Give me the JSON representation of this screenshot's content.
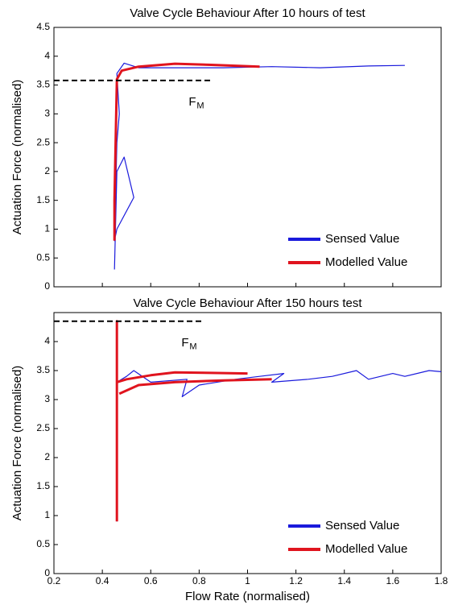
{
  "chart_data": [
    {
      "type": "line",
      "title": "Valve Cycle Behaviour After 10 hours of test",
      "ylabel": "Actuation Force (normalised)",
      "xlim": [
        0.2,
        1.8
      ],
      "xticks": [
        0.2,
        0.4,
        0.6,
        0.8,
        1,
        1.2,
        1.4,
        1.6,
        1.8
      ],
      "show_xtick_labels": false,
      "ylim": [
        0,
        4.5
      ],
      "yticks": [
        0,
        0.5,
        1,
        1.5,
        2,
        2.5,
        3,
        3.5,
        4,
        4.5
      ],
      "legend": "lower right",
      "reference_line": {
        "y": 3.58,
        "x": [
          0.2,
          0.85
        ],
        "color": "#000000",
        "style": "dashed"
      },
      "annotation": {
        "text": "F",
        "subscript": "M"
      },
      "series": [
        {
          "name": "Sensed Value",
          "color": "#1a1adc",
          "x": [
            0.45,
            0.46,
            0.49,
            0.53,
            0.46,
            0.45,
            0.46,
            0.47,
            0.46,
            0.49,
            0.55,
            0.7,
            0.9,
            1.1,
            1.3,
            1.5,
            1.65
          ],
          "values": [
            0.3,
            2.0,
            2.25,
            1.55,
            1.0,
            0.8,
            2.5,
            3.0,
            3.7,
            3.88,
            3.8,
            3.8,
            3.8,
            3.82,
            3.8,
            3.83,
            3.84
          ]
        },
        {
          "name": "Modelled Value",
          "color": "#e0141e",
          "x": [
            0.45,
            0.45,
            0.46,
            0.48,
            0.55,
            0.7,
            0.85,
            1.05
          ],
          "values": [
            0.8,
            1.5,
            3.6,
            3.75,
            3.82,
            3.87,
            3.85,
            3.82
          ]
        }
      ]
    },
    {
      "type": "line",
      "title": "Valve Cycle Behaviour After 150 hours test",
      "xlabel": "Flow Rate (normalised)",
      "ylabel": "Actuation Force (normalised)",
      "xlim": [
        0.2,
        1.8
      ],
      "xticks": [
        0.2,
        0.4,
        0.6,
        0.8,
        1,
        1.2,
        1.4,
        1.6,
        1.8
      ],
      "show_xtick_labels": true,
      "ylim": [
        0,
        4.5
      ],
      "yticks": [
        0,
        0.5,
        1,
        1.5,
        2,
        2.5,
        3,
        3.5,
        4
      ],
      "legend": "lower right",
      "reference_line": {
        "y": 4.35,
        "x": [
          0.2,
          0.82
        ],
        "color": "#000000",
        "style": "dashed"
      },
      "annotation": {
        "text": "F",
        "subscript": "M"
      },
      "series": [
        {
          "name": "Sensed Value",
          "color": "#1a1adc",
          "x": [
            0.46,
            0.46,
            0.5,
            0.53,
            0.6,
            0.75,
            0.73,
            0.8,
            0.95,
            1.05,
            1.15,
            1.1,
            1.25,
            1.35,
            1.45,
            1.5,
            1.6,
            1.65,
            1.75,
            1.8
          ],
          "values": [
            0.9,
            3.3,
            3.4,
            3.5,
            3.3,
            3.35,
            3.05,
            3.25,
            3.35,
            3.4,
            3.45,
            3.3,
            3.35,
            3.4,
            3.5,
            3.35,
            3.45,
            3.4,
            3.5,
            3.48
          ]
        },
        {
          "name": "Modelled Value",
          "color": "#e0141e",
          "x": [
            0.46,
            0.46,
            0.46,
            0.5,
            0.6,
            0.7,
            0.85,
            1.0,
            null,
            0.47,
            0.55,
            0.7,
            0.9,
            1.1
          ],
          "values": [
            0.9,
            4.35,
            3.3,
            3.35,
            3.42,
            3.47,
            3.46,
            3.45,
            null,
            3.1,
            3.25,
            3.3,
            3.33,
            3.35
          ]
        }
      ]
    }
  ]
}
